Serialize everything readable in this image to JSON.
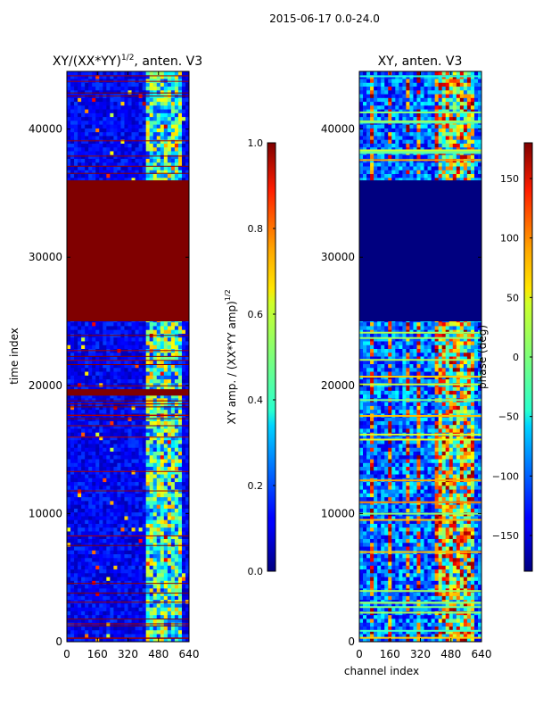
{
  "suptitle": "2015-06-17 0.0-24.0",
  "chart_data": [
    {
      "type": "heatmap",
      "title": "XY/(XX*YY)",
      "title_exponent": "1/2",
      "title_suffix": ", anten. V3",
      "xlabel": "",
      "ylabel": "time index",
      "xlim": [
        0,
        640
      ],
      "ylim": [
        0,
        44500
      ],
      "xticks": [
        0,
        160,
        320,
        480,
        640
      ],
      "yticks": [
        0,
        10000,
        20000,
        30000,
        40000
      ],
      "bands": [
        {
          "y0": 25000,
          "y1": 36000,
          "value": 1.0
        },
        {
          "y0": 19200,
          "y1": 19700,
          "value": 1.0
        }
      ],
      "colorbar": {
        "label": "XY amp. / (XX*YY amp)",
        "label_exponent": "1/2",
        "range": [
          0.0,
          1.0
        ],
        "ticks": [
          "0.0",
          "0.2",
          "0.4",
          "0.6",
          "0.8",
          "1.0"
        ]
      }
    },
    {
      "type": "heatmap",
      "title": "XY, anten. V3",
      "xlabel": "channel index",
      "ylabel": "",
      "xlim": [
        0,
        640
      ],
      "ylim": [
        0,
        44500
      ],
      "xticks": [
        0,
        160,
        320,
        480,
        640
      ],
      "yticks": [
        0,
        10000,
        20000,
        30000,
        40000
      ],
      "bands": [
        {
          "y0": 25000,
          "y1": 36000,
          "value": -180
        }
      ],
      "colorbar": {
        "label": "phase (deg)",
        "range": [
          -180,
          180
        ],
        "ticks": [
          "-150",
          "-100",
          "-50",
          "0",
          "50",
          "100",
          "150"
        ]
      }
    }
  ]
}
